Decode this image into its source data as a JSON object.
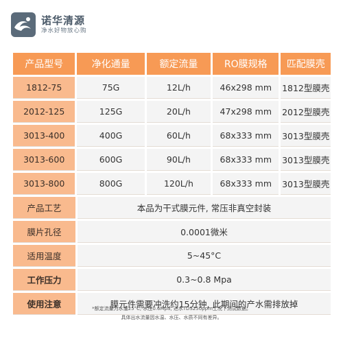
{
  "brand": {
    "name": "诺华清源",
    "slogan": "净水好物放心购"
  },
  "table": {
    "headers": [
      "产品型号",
      "净化通量",
      "额定流量",
      "RO膜规格",
      "匹配膜壳"
    ],
    "rows": [
      [
        "1812-75",
        "75G",
        "12L/h",
        "46x298 mm",
        "1812型膜壳"
      ],
      [
        "2012-125",
        "125G",
        "20L/h",
        "47x298 mm",
        "2012型膜壳"
      ],
      [
        "3013-400",
        "400G",
        "60L/h",
        "68x333 mm",
        "3013型膜壳"
      ],
      [
        "3013-600",
        "600G",
        "90L/h",
        "68x333 mm",
        "3013型膜壳"
      ],
      [
        "3013-800",
        "800G",
        "120L/h",
        "68x333 mm",
        "3013型膜壳"
      ]
    ],
    "specs": [
      {
        "label": "产品工艺",
        "value": "本品为干式膜元件, 常压非真空封装"
      },
      {
        "label": "膜片孔径",
        "value": "0.0001微米"
      },
      {
        "label": "适用温度",
        "value": "5~45°C"
      },
      {
        "label": "工作压力",
        "value": "0.3~0.8 Mpa"
      },
      {
        "label": "使用注意",
        "value": "膜元件需要冲洗约15分钟, 此期间的产水需排放掉"
      }
    ]
  },
  "footnotes": [
    "*额定流量为水温25°C, 水压0.6Mpa, 进水TDS250ppm工况下测试数据。",
    "具体出水流量因水温、水压、水质不同有差异。"
  ],
  "colors": {
    "header": "#f79a55",
    "label": "#f9ba8e",
    "value": "#f4f4f4",
    "logo": "#5b6b7a"
  }
}
